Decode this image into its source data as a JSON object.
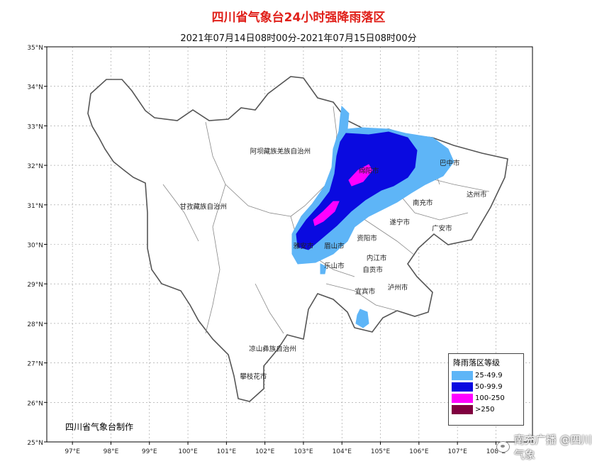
{
  "map": {
    "title": "四川省气象台24小时强降雨落区",
    "subtitle": "2021年07月14日08时00分-2021年07月15日08时00分",
    "credit": "四川省气象台制作",
    "watermark": "南充广播 @四川气象",
    "lat_labels": [
      "35°N",
      "34°N",
      "33°N",
      "32°N",
      "31°N",
      "30°N",
      "29°N",
      "28°N",
      "27°N",
      "26°N",
      "25°N"
    ],
    "lon_labels": [
      "97°E",
      "98°E",
      "99°E",
      "100°E",
      "101°E",
      "102°E",
      "103°E",
      "104°E",
      "105°E",
      "106°E",
      "107°E",
      "108°E"
    ],
    "regions": [
      {
        "id": "aba",
        "label": "阿坝藏族羌族自治州",
        "lon": 102.4,
        "lat": 32.3
      },
      {
        "id": "ganzi",
        "label": "甘孜藏族自治州",
        "lon": 100.4,
        "lat": 30.9
      },
      {
        "id": "liangshan",
        "label": "凉山彝族自治州",
        "lon": 102.2,
        "lat": 27.3
      },
      {
        "id": "panzhihua",
        "label": "攀枝花市",
        "lon": 101.7,
        "lat": 26.6
      },
      {
        "id": "yaan",
        "label": "雅安市",
        "lon": 103.0,
        "lat": 29.9
      },
      {
        "id": "meishan",
        "label": "眉山市",
        "lon": 103.8,
        "lat": 29.9
      },
      {
        "id": "leshan",
        "label": "乐山市",
        "lon": 103.8,
        "lat": 29.4
      },
      {
        "id": "ziyang",
        "label": "资阳市",
        "lon": 104.65,
        "lat": 30.1
      },
      {
        "id": "neijiang",
        "label": "内江市",
        "lon": 104.9,
        "lat": 29.6
      },
      {
        "id": "zigong",
        "label": "自贡市",
        "lon": 104.8,
        "lat": 29.3
      },
      {
        "id": "yibin",
        "label": "宜宾市",
        "lon": 104.6,
        "lat": 28.75
      },
      {
        "id": "luzhou",
        "label": "泸州市",
        "lon": 105.45,
        "lat": 28.85
      },
      {
        "id": "suining",
        "label": "遂宁市",
        "lon": 105.5,
        "lat": 30.5
      },
      {
        "id": "guangan",
        "label": "广安市",
        "lon": 106.6,
        "lat": 30.35
      },
      {
        "id": "nanchong",
        "label": "南充市",
        "lon": 106.1,
        "lat": 31.0
      },
      {
        "id": "dazhou",
        "label": "达州市",
        "lon": 107.5,
        "lat": 31.2
      },
      {
        "id": "bazhong",
        "label": "巴中市",
        "lon": 106.8,
        "lat": 32.0
      },
      {
        "id": "mianyang",
        "label": "绵阳市",
        "lon": 104.7,
        "lat": 31.8
      }
    ],
    "legend": {
      "title": "降雨落区等级",
      "items": [
        {
          "label": "25-49.9",
          "color": "#5eb5f7"
        },
        {
          "label": "50-99.9",
          "color": "#0a0ae0"
        },
        {
          "label": "100-250",
          "color": "#ff00ff"
        },
        {
          "label": ">250",
          "color": "#800040"
        }
      ]
    }
  }
}
